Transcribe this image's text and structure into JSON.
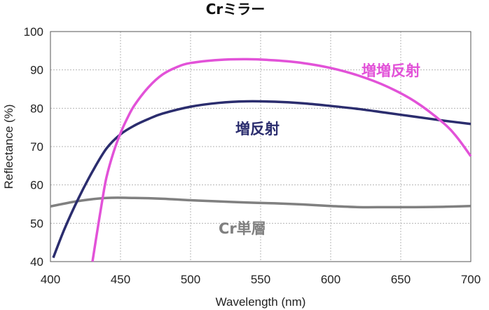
{
  "chart_data": {
    "type": "line",
    "title": "Crミラー",
    "xlabel": "Wavelength (nm)",
    "ylabel": "Reflectance (%)",
    "xlim": [
      400,
      700
    ],
    "ylim": [
      40,
      100
    ],
    "xticks": [
      "400",
      "450",
      "500",
      "550",
      "600",
      "650",
      "700"
    ],
    "yticks": [
      "40",
      "50",
      "60",
      "70",
      "80",
      "90",
      "100"
    ],
    "grid": true,
    "series": [
      {
        "name": "Cr単層",
        "color": "#808080",
        "x": [
          400,
          420,
          440,
          460,
          480,
          500,
          520,
          540,
          560,
          580,
          600,
          620,
          640,
          660,
          680,
          700
        ],
        "y": [
          54.4,
          55.8,
          56.6,
          56.6,
          56.4,
          56.0,
          55.7,
          55.4,
          55.2,
          54.9,
          54.5,
          54.2,
          54.2,
          54.2,
          54.3,
          54.5
        ]
      },
      {
        "name": "増反射",
        "color": "#2b2d6e",
        "x": [
          402,
          410,
          420,
          430,
          440,
          450,
          460,
          470,
          480,
          500,
          520,
          540,
          560,
          580,
          600,
          620,
          640,
          660,
          680,
          700
        ],
        "y": [
          41,
          48.5,
          56.5,
          63.5,
          69.5,
          73.2,
          75.5,
          77.2,
          78.6,
          80.4,
          81.4,
          81.8,
          81.7,
          81.3,
          80.6,
          79.8,
          78.8,
          77.8,
          76.8,
          75.9
        ]
      },
      {
        "name": "増増反射",
        "color": "#e252d8",
        "x": [
          430,
          433,
          437,
          440,
          445,
          450,
          455,
          460,
          470,
          480,
          490,
          500,
          520,
          540,
          560,
          580,
          600,
          620,
          640,
          660,
          680,
          690,
          700
        ],
        "y": [
          40,
          47,
          56,
          62,
          68.5,
          73.5,
          77.5,
          80.8,
          85.5,
          88.8,
          90.7,
          91.8,
          92.6,
          92.8,
          92.5,
          91.8,
          90.5,
          88.5,
          85.7,
          81.8,
          76.3,
          72.5,
          67.5
        ]
      }
    ]
  }
}
